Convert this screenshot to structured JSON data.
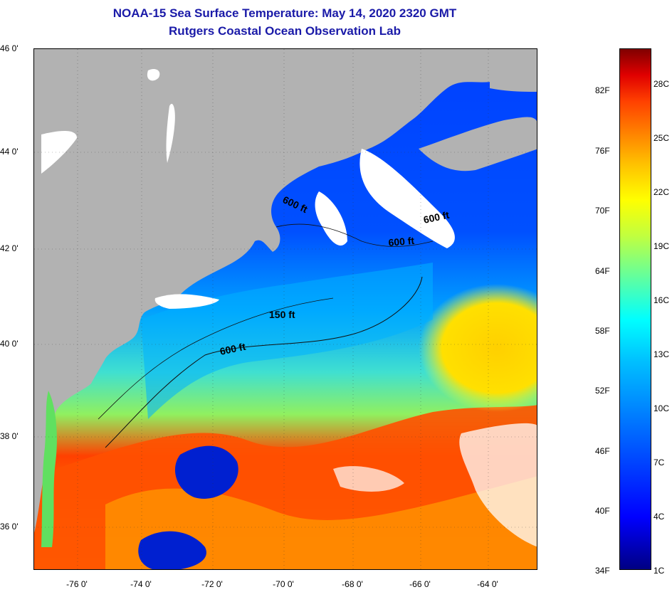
{
  "title": "NOAA-15 Sea Surface Temperature:  May 14, 2020 2320 GMT",
  "subtitle": "Rutgers Coastal Ocean Observation Lab",
  "map": {
    "latitude_labels": [
      "46 0'",
      "44 0'",
      "42 0'",
      "40 0'",
      "38 0'",
      "36 0'"
    ],
    "longitude_labels": [
      "-76 0'",
      "-74 0'",
      "-72 0'",
      "-70 0'",
      "-68 0'",
      "-66 0'",
      "-64 0'"
    ],
    "depth_contours": {
      "label_600_a": "600 ft",
      "label_600_b": "600 ft",
      "label_600_c": "600 ft",
      "label_600_d": "600 ft",
      "label_150": "150 ft"
    }
  },
  "colorbar": {
    "fahrenheit_labels": [
      "82F",
      "76F",
      "70F",
      "64F",
      "58F",
      "52F",
      "46F",
      "40F",
      "34F"
    ],
    "celsius_labels": [
      "28C",
      "25C",
      "22C",
      "19C",
      "16C",
      "13C",
      "10C",
      "7C",
      "4C",
      "1C"
    ]
  },
  "colors": {
    "land": "#b2b2b2",
    "title": "#1a1aa8"
  }
}
